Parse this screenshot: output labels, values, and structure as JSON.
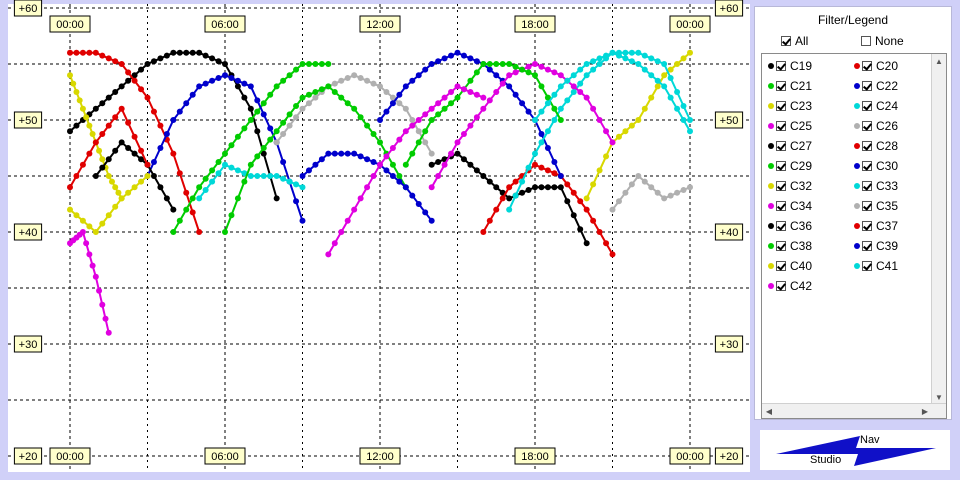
{
  "chart_data": {
    "type": "scatter",
    "title": "",
    "xlabel": "",
    "ylabel": "",
    "x_ticks": [
      "00:00",
      "06:00",
      "12:00",
      "18:00",
      "00:00"
    ],
    "y_ticks": [
      "+20",
      "+30",
      "+40",
      "+50",
      "+60"
    ],
    "x_range_hours": [
      0,
      24
    ],
    "ylim": [
      20,
      60
    ],
    "grid": true,
    "legend_position": "right",
    "series": [
      {
        "name": "C19",
        "color": "#000000",
        "x": [
          0,
          1,
          2,
          3,
          4,
          5,
          6,
          7,
          8
        ],
        "y": [
          49,
          51,
          53,
          55,
          56,
          56,
          55,
          51,
          43
        ]
      },
      {
        "name": "C20",
        "color": "#e00000",
        "x": [
          0,
          1,
          2,
          3,
          4,
          5
        ],
        "y": [
          56,
          56,
          55,
          52,
          47,
          40
        ]
      },
      {
        "name": "C21",
        "color": "#00cc00",
        "x": [
          4,
          5,
          6,
          7,
          8,
          9,
          10
        ],
        "y": [
          40,
          44,
          47,
          50,
          53,
          55,
          55
        ]
      },
      {
        "name": "C22",
        "color": "#0000cc",
        "x": [
          3,
          4,
          5,
          6,
          7,
          8,
          9
        ],
        "y": [
          45,
          50,
          53,
          54,
          53,
          48,
          41
        ]
      },
      {
        "name": "C23",
        "color": "#d8d800",
        "x": [
          0,
          0.5,
          1,
          1.5,
          2
        ],
        "y": [
          54,
          51,
          48,
          45,
          43
        ]
      },
      {
        "name": "C24",
        "color": "#00d8d8",
        "x": [
          5,
          6,
          7,
          8,
          9
        ],
        "y": [
          43,
          46,
          45,
          45,
          44
        ]
      },
      {
        "name": "C25",
        "color": "#e000e0",
        "x": [
          0,
          0.5,
          1,
          1.5
        ],
        "y": [
          39,
          40,
          36,
          31
        ]
      },
      {
        "name": "C26",
        "color": "#b0b0b0",
        "x": [
          8,
          9,
          10,
          11,
          12,
          13,
          14
        ],
        "y": [
          48,
          51,
          53,
          54,
          53,
          51,
          47
        ]
      },
      {
        "name": "C27",
        "color": "#000000",
        "x": [
          14,
          15,
          16,
          17,
          18,
          19,
          20
        ],
        "y": [
          46,
          47,
          45,
          43,
          44,
          44,
          39
        ]
      },
      {
        "name": "C28",
        "color": "#e00000",
        "x": [
          16,
          17,
          18,
          19,
          20,
          21
        ],
        "y": [
          40,
          44,
          46,
          45,
          42,
          38
        ]
      },
      {
        "name": "C29",
        "color": "#00cc00",
        "x": [
          6,
          7,
          8,
          9,
          10,
          11,
          12,
          13
        ],
        "y": [
          40,
          46,
          49,
          52,
          53,
          51,
          48,
          44
        ]
      },
      {
        "name": "C30",
        "color": "#0000cc",
        "x": [
          12,
          13,
          14,
          15,
          16,
          17,
          18,
          19
        ],
        "y": [
          50,
          53,
          55,
          56,
          55,
          53,
          50,
          45
        ]
      },
      {
        "name": "C32",
        "color": "#d8d800",
        "x": [
          20,
          21,
          22,
          23,
          24
        ],
        "y": [
          43,
          48,
          50,
          54,
          56
        ]
      },
      {
        "name": "C33",
        "color": "#00d8d8",
        "x": [
          17,
          18,
          19,
          20,
          21,
          22,
          23,
          24
        ],
        "y": [
          42,
          47,
          51,
          54,
          56,
          55,
          53,
          49
        ]
      },
      {
        "name": "C34",
        "color": "#e000e0",
        "x": [
          14,
          15,
          16,
          17,
          18,
          19,
          20,
          21
        ],
        "y": [
          44,
          48,
          51,
          54,
          55,
          54,
          52,
          48
        ]
      },
      {
        "name": "C35",
        "color": "#b0b0b0",
        "x": [
          21,
          22,
          23,
          24
        ],
        "y": [
          42,
          45,
          43,
          44
        ]
      },
      {
        "name": "C36",
        "color": "#000000",
        "x": [
          1,
          2,
          3,
          4
        ],
        "y": [
          45,
          48,
          46,
          42
        ]
      },
      {
        "name": "C37",
        "color": "#e00000",
        "x": [
          0,
          1,
          2,
          3
        ],
        "y": [
          44,
          48,
          51,
          46
        ]
      },
      {
        "name": "C38",
        "color": "#00cc00",
        "x": [
          13,
          14,
          15,
          16,
          17,
          18,
          19
        ],
        "y": [
          46,
          50,
          52,
          55,
          55,
          54,
          50
        ]
      },
      {
        "name": "C39",
        "color": "#0000cc",
        "x": [
          9,
          10,
          11,
          12,
          13,
          14
        ],
        "y": [
          45,
          47,
          47,
          46,
          44,
          41
        ]
      },
      {
        "name": "C40",
        "color": "#d8d800",
        "x": [
          0,
          1,
          2,
          3
        ],
        "y": [
          42,
          40,
          43,
          45
        ]
      },
      {
        "name": "C41",
        "color": "#00d8d8",
        "x": [
          18,
          19,
          20,
          21,
          22,
          23,
          24
        ],
        "y": [
          50,
          53,
          55,
          56,
          56,
          55,
          50
        ]
      },
      {
        "name": "C42",
        "color": "#e000e0",
        "x": [
          10,
          11,
          12,
          13,
          14,
          15,
          16
        ],
        "y": [
          38,
          42,
          46,
          49,
          51,
          53,
          52
        ]
      }
    ]
  },
  "legend": {
    "title": "Filter/Legend",
    "all_label": "All",
    "none_label": "None"
  },
  "logo": {
    "nav": "Nav",
    "studio": "Studio"
  }
}
